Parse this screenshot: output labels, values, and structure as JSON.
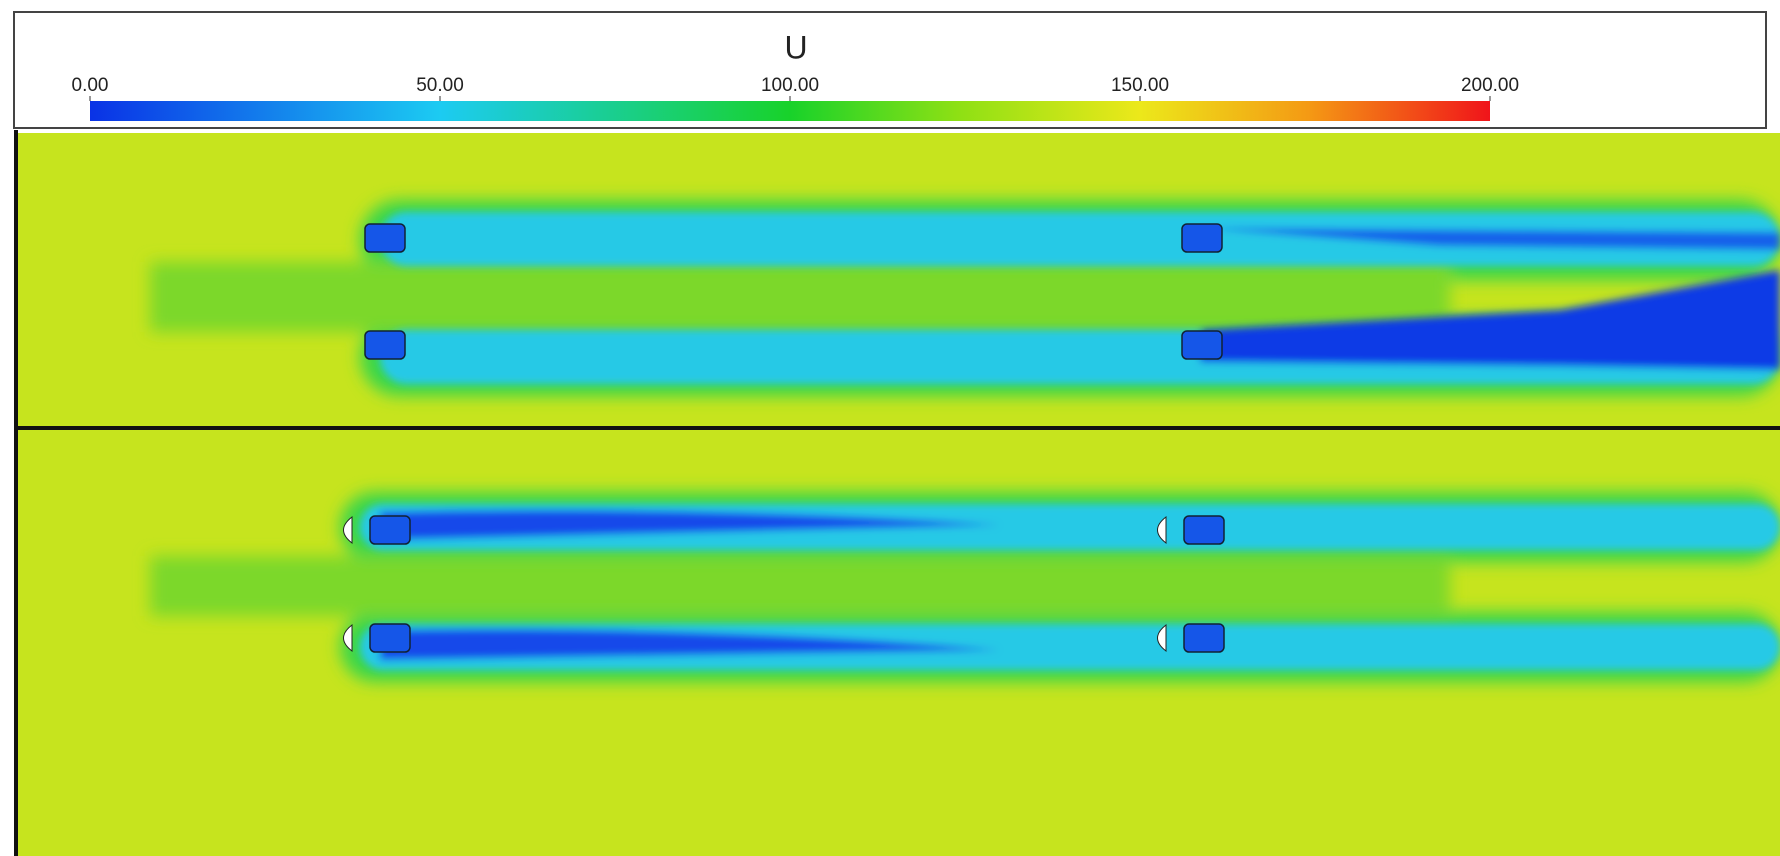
{
  "colorbar": {
    "title": "U",
    "range": [
      0,
      200
    ],
    "ticks": [
      {
        "value": 0,
        "label": "0.00"
      },
      {
        "value": 50,
        "label": "50.00"
      },
      {
        "value": 100,
        "label": "100.00"
      },
      {
        "value": 150,
        "label": "150.00"
      },
      {
        "value": 200,
        "label": "200.00"
      }
    ]
  }
}
